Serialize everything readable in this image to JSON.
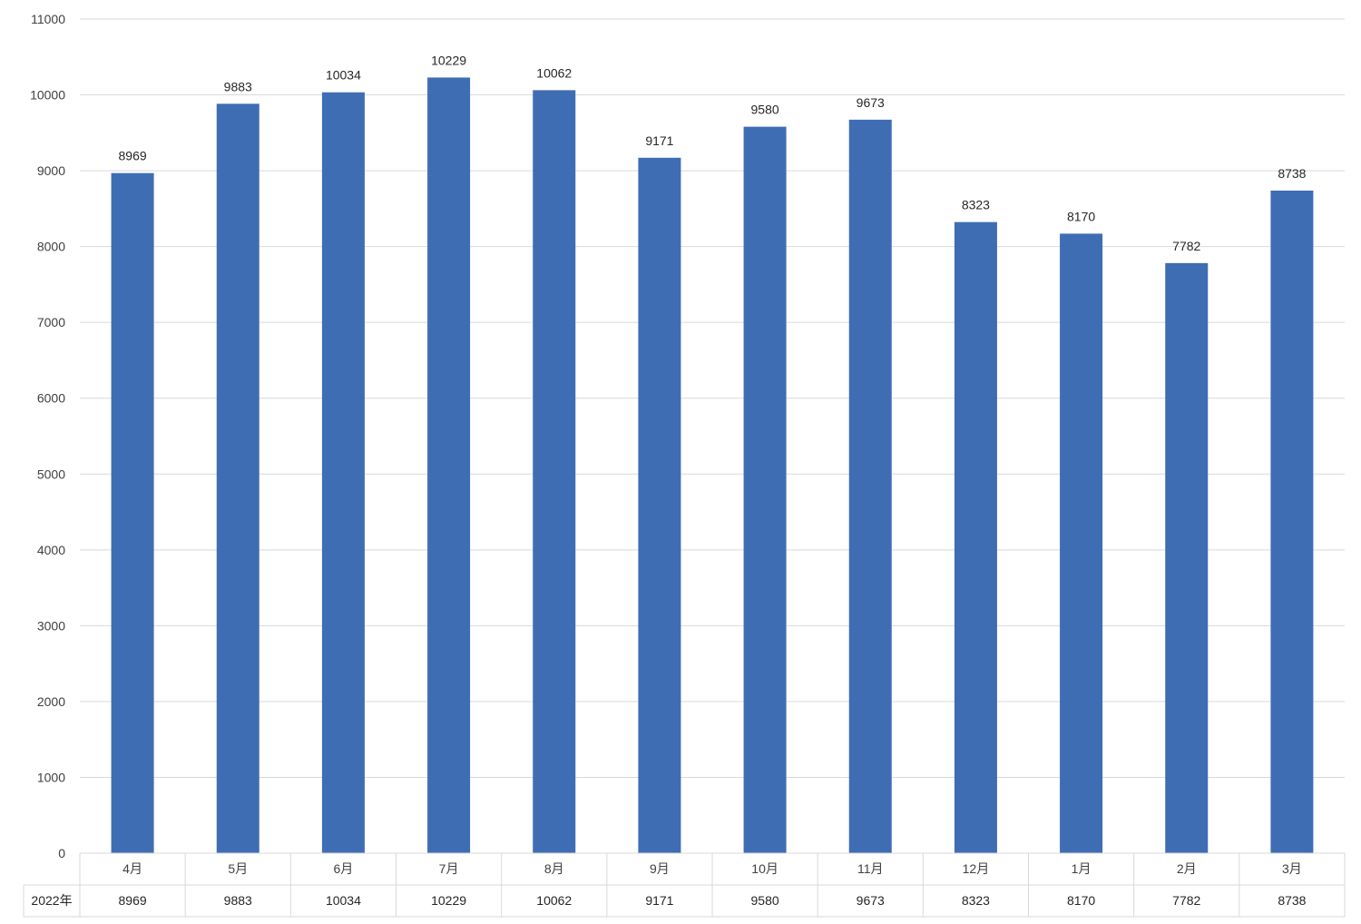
{
  "chart_data": {
    "type": "bar",
    "categories": [
      "4月",
      "5月",
      "6月",
      "7月",
      "8月",
      "9月",
      "10月",
      "11月",
      "12月",
      "1月",
      "2月",
      "3月"
    ],
    "series": [
      {
        "name": "2022年",
        "values": [
          8969,
          9883,
          10034,
          10229,
          10062,
          9171,
          9580,
          9673,
          8323,
          8170,
          7782,
          8738
        ]
      }
    ],
    "yticks": [
      "0",
      "1000",
      "2000",
      "3000",
      "4000",
      "5000",
      "6000",
      "7000",
      "8000",
      "9000",
      "10000",
      "11000"
    ],
    "ylim": [
      0,
      11000
    ],
    "grid": true,
    "data_table": true,
    "bar_color": "#3f6db3"
  }
}
